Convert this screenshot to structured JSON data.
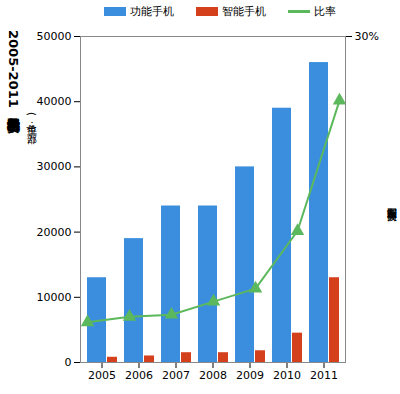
{
  "chart_data": {
    "type": "bar",
    "title": "2005-2011年国内手机出货量",
    "subtitle": "(单位：万部)",
    "annotations": [
      "新京报制图 商俊夫"
    ],
    "categories": [
      "2005",
      "2006",
      "2007",
      "2008",
      "2009",
      "2010",
      "2011"
    ],
    "series": [
      {
        "name": "功能手机",
        "color": "#3b8ede",
        "type": "bar",
        "values": [
          13000,
          19000,
          24000,
          24000,
          30000,
          39000,
          46000
        ]
      },
      {
        "name": "智能手机",
        "color": "#d4401c",
        "type": "bar",
        "values": [
          800,
          1000,
          1500,
          1500,
          1800,
          4500,
          13000
        ]
      },
      {
        "name": "比率",
        "color": "#5cb85c",
        "type": "line",
        "marker": "triangle",
        "axis": "y2",
        "values": [
          3.7,
          4.2,
          4.4,
          5.6,
          6.8,
          12.1,
          24.1
        ]
      }
    ],
    "ylim": [
      0,
      50000
    ],
    "yticks": [
      0,
      10000,
      20000,
      30000,
      40000,
      50000
    ],
    "y2lim": [
      0,
      30
    ],
    "y2ticks": [
      {
        "value": 30,
        "label": "30%"
      }
    ],
    "legend": "top",
    "grid": false
  }
}
